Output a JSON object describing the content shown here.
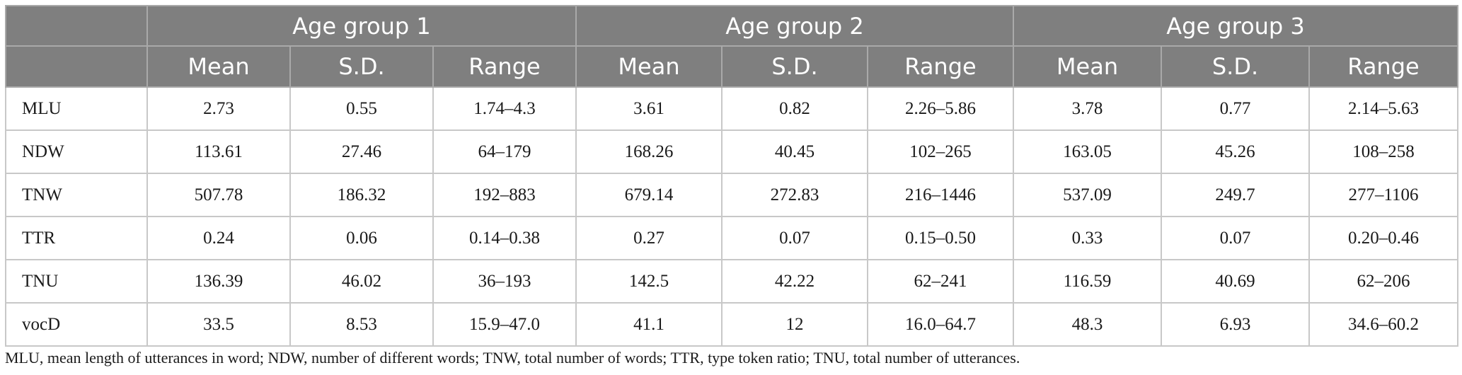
{
  "table": {
    "corner": "",
    "groups": [
      "Age group 1",
      "Age group 2",
      "Age group 3"
    ],
    "subheaders": [
      "Mean",
      "S.D.",
      "Range"
    ],
    "rows": [
      {
        "label": "MLU",
        "values": [
          "2.73",
          "0.55",
          "1.74–4.3",
          "3.61",
          "0.82",
          "2.26–5.86",
          "3.78",
          "0.77",
          "2.14–5.63"
        ]
      },
      {
        "label": "NDW",
        "values": [
          "113.61",
          "27.46",
          "64–179",
          "168.26",
          "40.45",
          "102–265",
          "163.05",
          "45.26",
          "108–258"
        ]
      },
      {
        "label": "TNW",
        "values": [
          "507.78",
          "186.32",
          "192–883",
          "679.14",
          "272.83",
          "216–1446",
          "537.09",
          "249.7",
          "277–1106"
        ]
      },
      {
        "label": "TTR",
        "values": [
          "0.24",
          "0.06",
          "0.14–0.38",
          "0.27",
          "0.07",
          "0.15–0.50",
          "0.33",
          "0.07",
          "0.20–0.46"
        ]
      },
      {
        "label": "TNU",
        "values": [
          "136.39",
          "46.02",
          "36–193",
          "142.5",
          "42.22",
          "62–241",
          "116.59",
          "40.69",
          "62–206"
        ]
      },
      {
        "label": "vocD",
        "values": [
          "33.5",
          "8.53",
          "15.9–47.0",
          "41.1",
          "12",
          "16.0–64.7",
          "48.3",
          "6.93",
          "34.6–60.2"
        ]
      }
    ]
  },
  "footnote": "MLU, mean length of utterances in word; NDW, number of different words; TNW, total number of words; TTR, type token ratio; TNU, total number of utterances."
}
